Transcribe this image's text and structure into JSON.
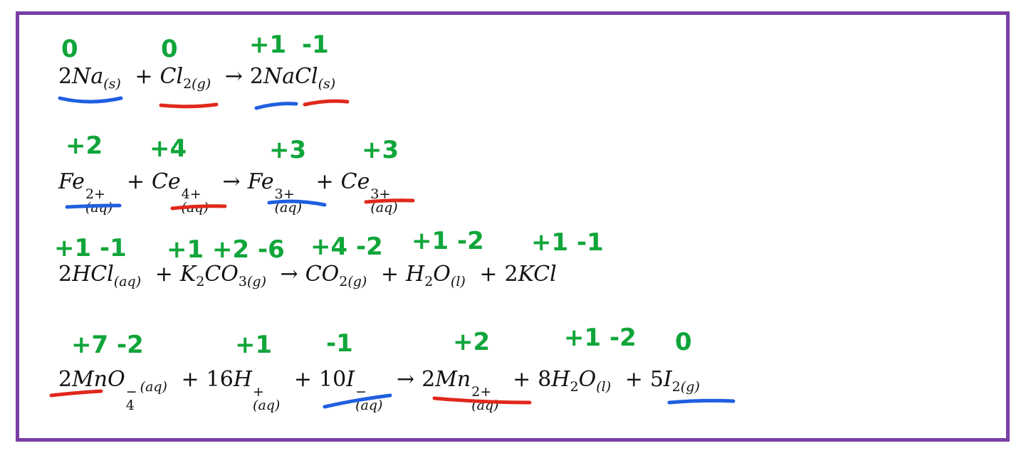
{
  "colors": {
    "frame": "#7a3fa6",
    "oxidation_number": "#10a53a",
    "oxidized_underline": "#1f5fe0",
    "reduced_underline": "#e0281c"
  },
  "equations": [
    {
      "terms": {
        "t1_coef": "2",
        "t1_sym": "Na",
        "t1_state": "(s)",
        "op1": "+",
        "t2_sym": "Cl",
        "t2_sub": "2",
        "t2_state": "(g)",
        "arrow": "→",
        "t3_coef": "2",
        "t3_sym": "NaCl",
        "t3_state": "(s)"
      },
      "oxidation_numbers": [
        "0",
        "0",
        "+1",
        "-1"
      ]
    },
    {
      "terms": {
        "t1_sym": "Fe",
        "t1_charge": "2+",
        "t1_state": "(aq)",
        "op1": "+",
        "t2_sym": "Ce",
        "t2_charge": "4+",
        "t2_state": "(aq)",
        "arrow": "→",
        "t3_sym": "Fe",
        "t3_charge": "3+",
        "t3_state": "(aq)",
        "op2": "+",
        "t4_sym": "Ce",
        "t4_charge": "3+",
        "t4_state": "(aq)"
      },
      "oxidation_numbers": [
        "+2",
        "+4",
        "+3",
        "+3"
      ]
    },
    {
      "terms": {
        "t1_coef": "2",
        "t1_sym": "HCl",
        "t1_state": "(aq)",
        "op1": "+",
        "t2_sym1": "K",
        "t2_sub1": "2",
        "t2_sym2": "CO",
        "t2_sub2": "3",
        "t2_state": "(g)",
        "arrow": "→",
        "t3_sym": "CO",
        "t3_sub": "2",
        "t3_state": "(g)",
        "op2": "+",
        "t4_sym1": "H",
        "t4_sub": "2",
        "t4_sym2": "O",
        "t4_state": "(l)",
        "op3": "+",
        "t5_coef": "2",
        "t5_sym": "KCl"
      },
      "oxidation_numbers": [
        "+1 -1",
        "+1 +2 -6",
        "+4 -2",
        "+1 -2",
        "+1 -1"
      ]
    },
    {
      "terms": {
        "t1_coef": "2",
        "t1_sym": "MnO",
        "t1_charge": "−",
        "t1_sub": "4",
        "t1_state": "(aq)",
        "op1": "+",
        "t2_coef": "16",
        "t2_sym": "H",
        "t2_charge": "+",
        "t2_state": "(aq)",
        "op2": "+",
        "t3_coef": "10",
        "t3_sym": "I",
        "t3_charge": "−",
        "t3_state": "(aq)",
        "arrow": "→",
        "t4_coef": "2",
        "t4_sym": "Mn",
        "t4_charge": "2+",
        "t4_state": "(aq)",
        "op3": "+",
        "t5_coef": "8",
        "t5_sym1": "H",
        "t5_sub": "2",
        "t5_sym2": "O",
        "t5_state": "(l)",
        "op4": "+",
        "t6_coef": "5",
        "t6_sym": "I",
        "t6_sub": "2",
        "t6_state": "(g)"
      },
      "oxidation_numbers": [
        "+7 -2",
        "+1",
        "-1",
        "+2",
        "+1 -2",
        "0"
      ]
    }
  ]
}
